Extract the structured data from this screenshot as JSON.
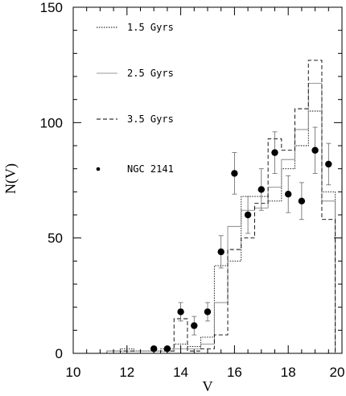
{
  "chart_data": {
    "type": "line",
    "title": "",
    "xlabel": "V",
    "ylabel": "N(V)",
    "xlim": [
      10,
      20
    ],
    "ylim": [
      0,
      150
    ],
    "xticks": [
      10,
      12,
      14,
      16,
      18,
      20
    ],
    "yticks": [
      0,
      50,
      100,
      150
    ],
    "grid": false,
    "legend_position": "upper-left",
    "bin_edges": [
      11.25,
      11.75,
      12.25,
      12.75,
      13.25,
      13.75,
      14.25,
      14.75,
      15.25,
      15.75,
      16.25,
      16.75,
      17.25,
      17.75,
      18.25,
      18.75,
      19.25,
      19.75
    ],
    "series": [
      {
        "name": "1.5 Gyrs",
        "style": "dotted",
        "values": [
          1,
          2,
          1,
          1,
          2,
          4,
          3,
          7,
          38,
          40,
          68,
          68,
          66,
          80,
          90,
          105,
          70
        ]
      },
      {
        "name": "2.5 Gyrs",
        "style": "solid-thin",
        "values": [
          1,
          1,
          1,
          1,
          1,
          2,
          2,
          4,
          22,
          55,
          62,
          63,
          72,
          84,
          97,
          117,
          66
        ]
      },
      {
        "name": "3.5 Gyrs",
        "style": "dashed",
        "values": [
          0,
          1,
          0,
          0,
          1,
          15,
          1,
          2,
          8,
          45,
          50,
          65,
          93,
          88,
          106,
          127,
          58
        ]
      },
      {
        "name": "NGC 2141",
        "style": "points-with-errorbars",
        "points": [
          {
            "x": 13.0,
            "y": 2,
            "err": 0
          },
          {
            "x": 13.5,
            "y": 2,
            "err": 0
          },
          {
            "x": 14.0,
            "y": 18,
            "err": 4
          },
          {
            "x": 14.5,
            "y": 12,
            "err": 4
          },
          {
            "x": 15.0,
            "y": 18,
            "err": 4
          },
          {
            "x": 15.5,
            "y": 44,
            "err": 7
          },
          {
            "x": 16.0,
            "y": 78,
            "err": 9
          },
          {
            "x": 16.5,
            "y": 60,
            "err": 8
          },
          {
            "x": 17.0,
            "y": 71,
            "err": 9
          },
          {
            "x": 17.5,
            "y": 87,
            "err": 9
          },
          {
            "x": 18.0,
            "y": 69,
            "err": 8
          },
          {
            "x": 18.5,
            "y": 66,
            "err": 8
          },
          {
            "x": 19.0,
            "y": 88,
            "err": 10
          },
          {
            "x": 19.5,
            "y": 82,
            "err": 9
          }
        ]
      }
    ]
  }
}
